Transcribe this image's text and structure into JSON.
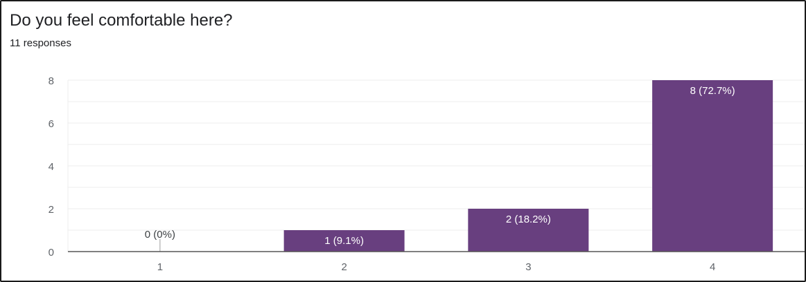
{
  "question": {
    "title": "Do you feel comfortable here?",
    "responses": "11 responses"
  },
  "colors": {
    "bar": "#683f7f",
    "grid": "#ececec",
    "axis": "#555555",
    "text": "#5f6368",
    "label_on_bar": "#ffffff",
    "label_off_bar": "#3c4043"
  },
  "chart_data": {
    "type": "bar",
    "categories": [
      "1",
      "2",
      "3",
      "4"
    ],
    "values": [
      0,
      1,
      2,
      8
    ],
    "data_labels": [
      "0 (0%)",
      "1 (9.1%)",
      "2 (18.2%)",
      "8 (72.7%)"
    ],
    "y_ticks": [
      "0",
      "2",
      "4",
      "6",
      "8"
    ],
    "ylim": [
      0,
      8
    ],
    "grid": true,
    "legend": "none"
  }
}
